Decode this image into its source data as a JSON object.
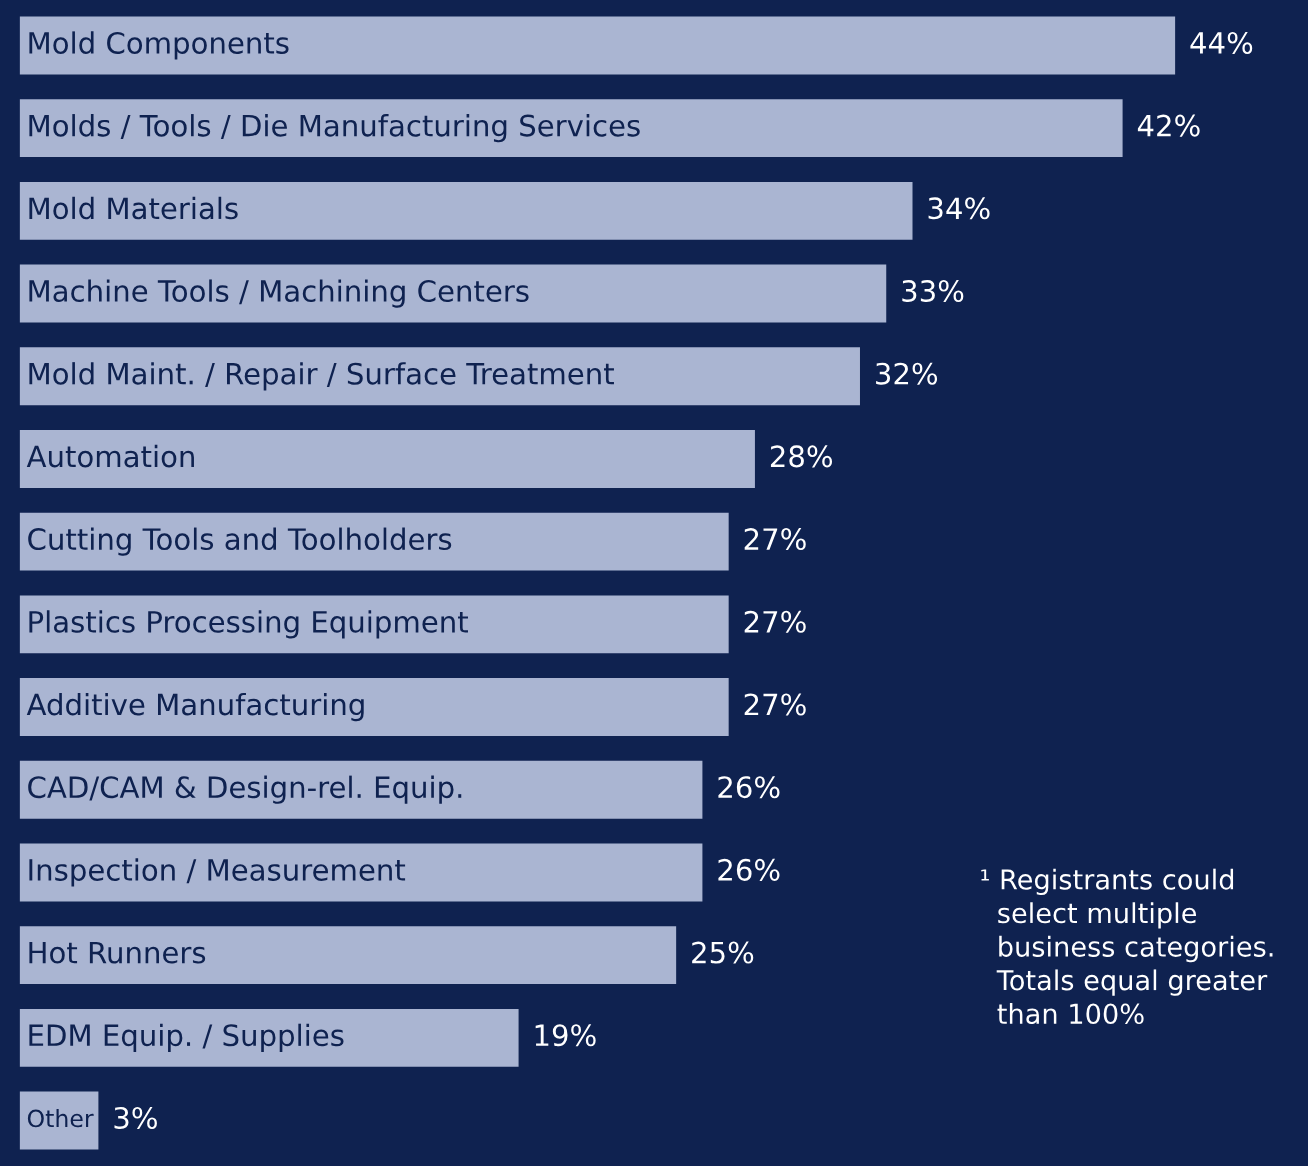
{
  "chart_data": {
    "type": "bar",
    "orientation": "horizontal",
    "categories": [
      "Mold Components",
      "Molds / Tools / Die Manufacturing Services",
      "Mold Materials",
      "Machine Tools / Machining Centers",
      "Mold Maint. / Repair / Surface Treatment",
      "Automation",
      "Cutting Tools and Toolholders",
      "Plastics Processing Equipment",
      "Additive Manufacturing",
      "CAD/CAM & Design-rel. Equip.",
      "Inspection / Measurement",
      "Hot Runners",
      "EDM Equip. / Supplies",
      "Other"
    ],
    "values": [
      44,
      42,
      34,
      33,
      32,
      28,
      27,
      27,
      27,
      26,
      26,
      25,
      19,
      3
    ],
    "value_labels": [
      "44%",
      "42%",
      "34%",
      "33%",
      "32%",
      "28%",
      "27%",
      "27%",
      "27%",
      "26%",
      "26%",
      "25%",
      "19%",
      "3%"
    ],
    "color": "#aab5d2",
    "annotations": [
      "¹ Registrants could\n  select multiple\n  business categories.\n  Totals equal greater\n  than 100%"
    ]
  }
}
